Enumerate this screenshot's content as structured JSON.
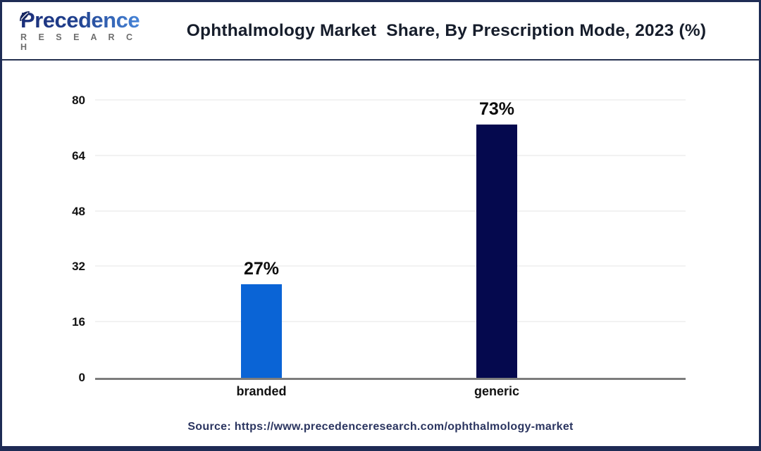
{
  "header": {
    "logo": {
      "name_main": "Precedence",
      "name_sub": "R E S E A R C H"
    },
    "title": "Ophthalmology Market  Share, By Prescription Mode, 2023 (%)"
  },
  "source": {
    "text": "Source: https://www.precedenceresearch.com/ophthalmology-market"
  },
  "colors": {
    "branded_bar": "#0a64d6",
    "generic_bar": "#05094e",
    "frame_navy": "#1e2c55",
    "axis_line": "#7c7c7c",
    "gridline": "#f2f2f2",
    "title_text": "#161d2b",
    "source_text": "#2b3560",
    "logo_gradient_start": "#1c2f7a",
    "logo_gradient_end": "#4b8ce0",
    "logo_sub_gray": "#6e6e6e"
  },
  "chart_data": {
    "type": "bar",
    "title": "Ophthalmology Market  Share, By Prescription Mode, 2023 (%)",
    "categories": [
      "branded",
      "generic"
    ],
    "values": [
      27,
      73
    ],
    "value_labels": [
      "27%",
      "73%"
    ],
    "bar_colors": [
      "#0a64d6",
      "#05094e"
    ],
    "xlabel": "",
    "ylabel": "",
    "ylim": [
      0,
      80
    ],
    "yticks": [
      0,
      16,
      32,
      48,
      64,
      80
    ],
    "grid": true,
    "legend": false
  }
}
